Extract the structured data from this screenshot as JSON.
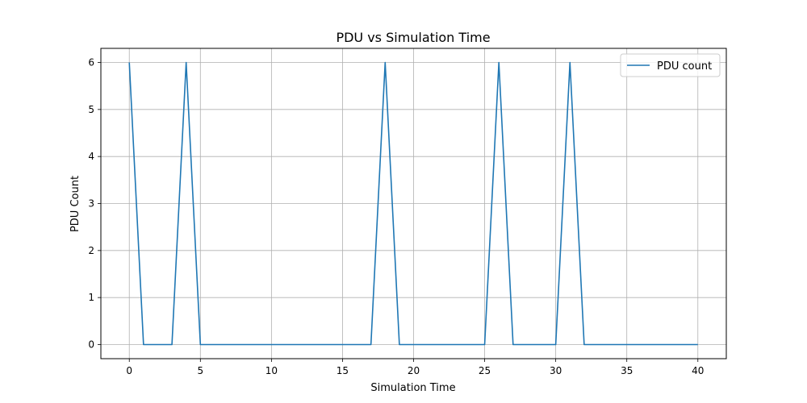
{
  "chart_data": {
    "type": "line",
    "title": "PDU vs Simulation Time",
    "xlabel": "Simulation Time",
    "ylabel": "PDU Count",
    "xlim": [
      -2,
      42
    ],
    "ylim": [
      -0.3,
      6.3
    ],
    "xticks": [
      0,
      5,
      10,
      15,
      20,
      25,
      30,
      35,
      40
    ],
    "yticks": [
      0,
      1,
      2,
      3,
      4,
      5,
      6
    ],
    "grid": true,
    "legend_position": "top-right",
    "series": [
      {
        "name": "PDU count",
        "color": "#1f77b4",
        "x": [
          0,
          1,
          3,
          4,
          5,
          17,
          18,
          19,
          25,
          26,
          27,
          30,
          31,
          32,
          40
        ],
        "y": [
          6,
          0,
          0,
          6,
          0,
          0,
          6,
          0,
          0,
          6,
          0,
          0,
          6,
          0,
          0
        ]
      }
    ]
  }
}
